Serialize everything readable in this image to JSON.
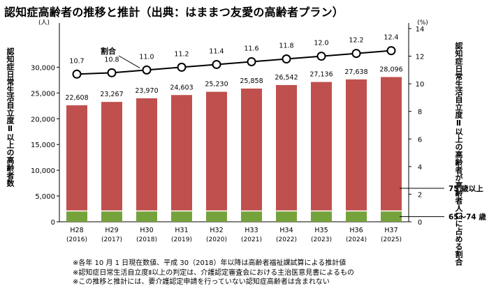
{
  "title": "認知症高齢者の推移と推計（出典：はままつ友愛の高齢者プラン）",
  "chart_data": {
    "type": "bar",
    "title": "認知症高齢者の推移と推計（出典：はままつ友愛の高齢者プラン）",
    "categories": [
      "H28",
      "H29",
      "H30",
      "H31",
      "H32",
      "H33",
      "H34",
      "H35",
      "H36",
      "H37"
    ],
    "category_sublabels": [
      "(2016)",
      "(2017)",
      "(2018)",
      "(2019)",
      "(2020)",
      "(2021)",
      "(2022)",
      "(2023)",
      "(2024)",
      "(2025)"
    ],
    "series": [
      {
        "name": "65～74歳",
        "color": "#76a23b",
        "values": [
          2000,
          2000,
          2000,
          2000,
          2000,
          2000,
          2000,
          2000,
          2000,
          2000
        ]
      },
      {
        "name": "75歳以上",
        "color": "#c0504d",
        "values": [
          20608,
          21267,
          21970,
          22603,
          23230,
          23858,
          24542,
          25136,
          25638,
          26096
        ]
      }
    ],
    "totals": [
      22608,
      23267,
      23970,
      24603,
      25230,
      25858,
      26542,
      27136,
      27638,
      28096
    ],
    "total_labels": [
      "22,608",
      "23,267",
      "23,970",
      "24,603",
      "25,230",
      "25,858",
      "26,542",
      "27,136",
      "27,638",
      "28,096"
    ],
    "ratio_series": {
      "name": "割合",
      "values": [
        10.7,
        10.8,
        11.0,
        11.2,
        11.4,
        11.6,
        11.8,
        12.0,
        12.2,
        12.4
      ],
      "labels": [
        "10.7",
        "10.8",
        "11.0",
        "11.2",
        "11.4",
        "11.6",
        "11.8",
        "12.0",
        "12.2",
        "12.4"
      ]
    },
    "y_left": {
      "unit": "(人)",
      "ylim": [
        0,
        37500
      ],
      "ticks": [
        0,
        5000,
        10000,
        15000,
        20000,
        25000,
        30000
      ],
      "tick_labels": [
        "0",
        "5,000",
        "10,000",
        "15,000",
        "20,000",
        "25,000",
        "30,000"
      ],
      "label": "認知症日常生活自立度Ⅱ以上の高齢者数"
    },
    "y_right": {
      "unit": "(%)",
      "ylim": [
        0,
        14
      ],
      "ticks": [
        0,
        2,
        4,
        6,
        8,
        10,
        12,
        14
      ],
      "tick_labels": [
        "0",
        "2",
        "4",
        "6",
        "8",
        "10",
        "12",
        "14"
      ],
      "label": "認知症日常生活自立度Ⅱ以上の高齢者が高齢者人口に占める割合"
    },
    "annotations": {
      "ratio_label": "割合",
      "legend_75": "75 歳以上",
      "legend_65": "65～74 歳"
    },
    "legend": "right",
    "grid": false
  },
  "notes": [
    "※各年 10 月 1 日現在数値、平成 30（2018）年以降は高齢者福祉課試算による推計値",
    "※認知症日常生活自立度Ⅱ以上の判定は、介護認定審査会における主治医意見書によるもの",
    "※この推移と推計には、要介護認定申請を行っていない認知症高齢者は含まれない"
  ]
}
